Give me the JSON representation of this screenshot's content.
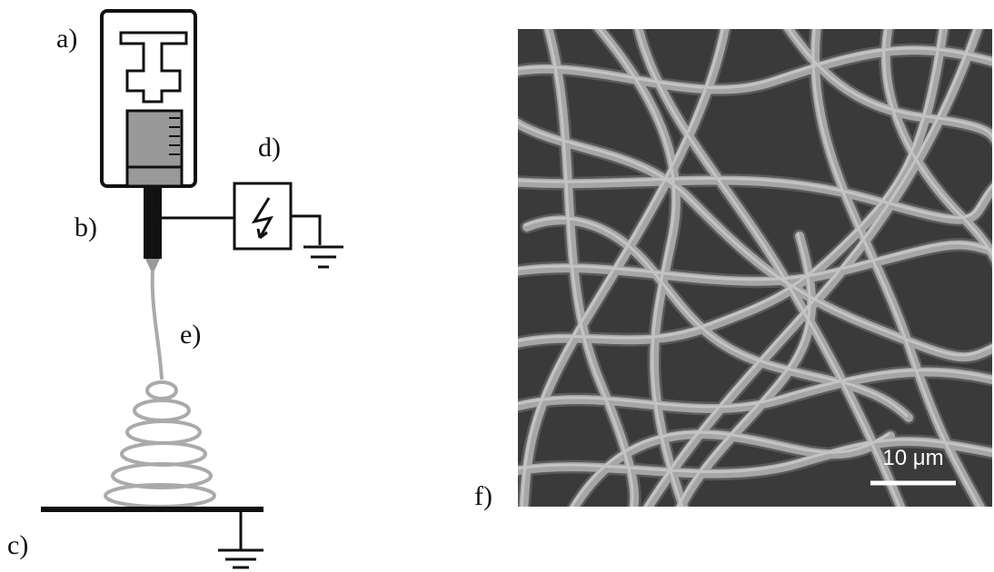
{
  "labels": [
    "a)",
    "b)",
    "c)",
    "d)",
    "e)",
    "f)"
  ],
  "scale_bar": {
    "label": "10 μm"
  }
}
